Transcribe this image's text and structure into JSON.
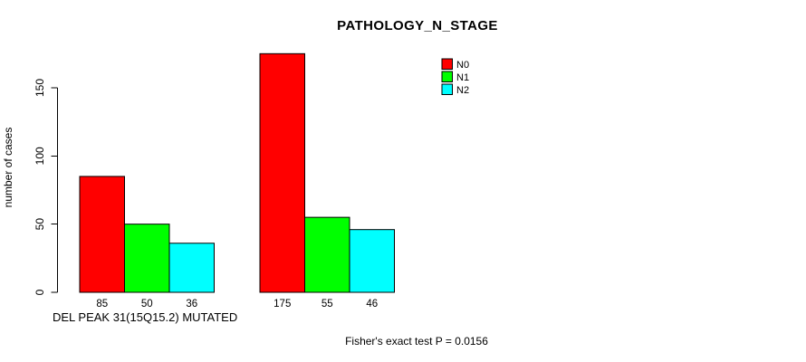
{
  "chart_data": {
    "type": "bar",
    "title": "PATHOLOGY_N_STAGE",
    "xlabel": "DEL PEAK 31(15Q15.2) MUTATED",
    "ylabel": "number of cases",
    "annotation": "Fisher's exact test P = 0.0156",
    "categories": [
      "DEL PEAK 31(15Q15.2) MUTATED",
      ""
    ],
    "series": [
      {
        "name": "N0",
        "color": "#ff0000",
        "values": [
          85,
          175
        ]
      },
      {
        "name": "N1",
        "color": "#00ff00",
        "values": [
          50,
          55
        ]
      },
      {
        "name": "N2",
        "color": "#00ffff",
        "values": [
          36,
          46
        ]
      }
    ],
    "yticks": [
      0,
      50,
      100,
      150
    ],
    "ylim": [
      0,
      175
    ],
    "grid": false,
    "legend_position": "top-right",
    "bar_value_labels_shown": true,
    "colors": {
      "background": "#ffffff",
      "axis": "#000000",
      "text": "#000000"
    }
  }
}
